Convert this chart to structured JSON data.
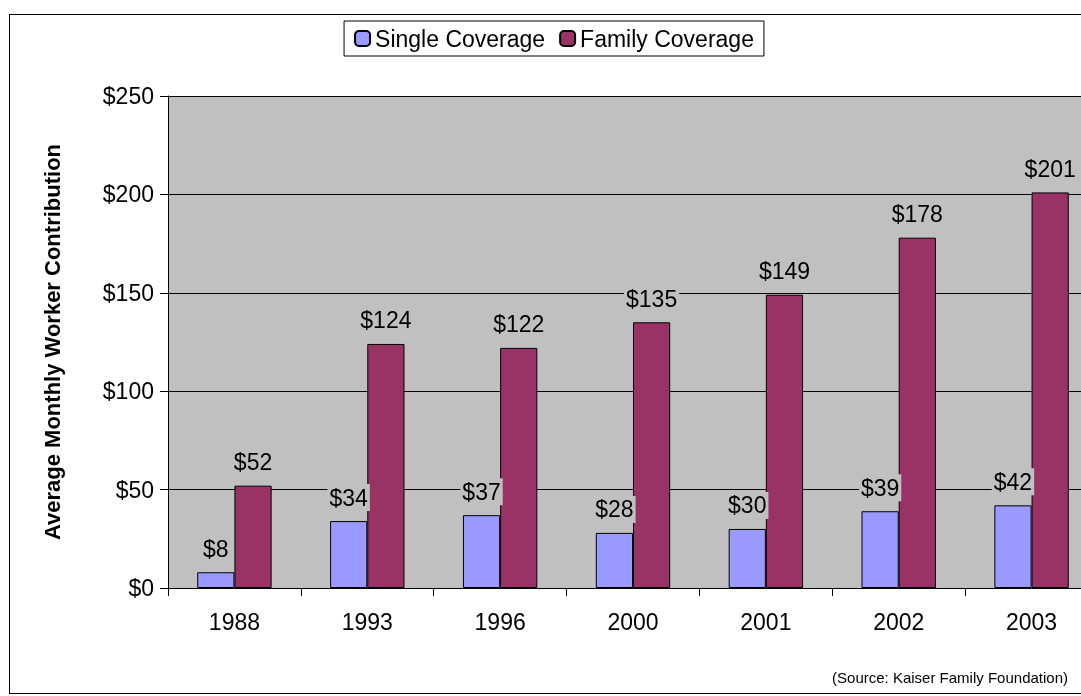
{
  "chart_data": {
    "type": "bar",
    "ylabel": "Average Monthly Worker Contribution",
    "categories": [
      "1988",
      "1993",
      "1996",
      "2000",
      "2001",
      "2002",
      "2003"
    ],
    "series": [
      {
        "name": "Single Coverage",
        "color": "#9999ff",
        "values": [
          8,
          34,
          37,
          28,
          30,
          39,
          42
        ],
        "value_labels": [
          "$8",
          "$34",
          "$37",
          "$28",
          "$30",
          "$39",
          "$42"
        ]
      },
      {
        "name": "Family Coverage",
        "color": "#993366",
        "values": [
          52,
          124,
          122,
          135,
          149,
          178,
          201
        ],
        "value_labels": [
          "$52",
          "$124",
          "$122",
          "$135",
          "$149",
          "$178",
          "$201"
        ]
      }
    ],
    "ylim": [
      0,
      250
    ],
    "yticks": [
      {
        "value": 0,
        "label": "$0"
      },
      {
        "value": 50,
        "label": "$50"
      },
      {
        "value": 100,
        "label": "$100"
      },
      {
        "value": 150,
        "label": "$150"
      },
      {
        "value": 200,
        "label": "$200"
      },
      {
        "value": 250,
        "label": "$250"
      }
    ],
    "grid": "y",
    "legend": "top",
    "annotations": [
      "(Source: Kaiser Family Foundation)"
    ]
  }
}
